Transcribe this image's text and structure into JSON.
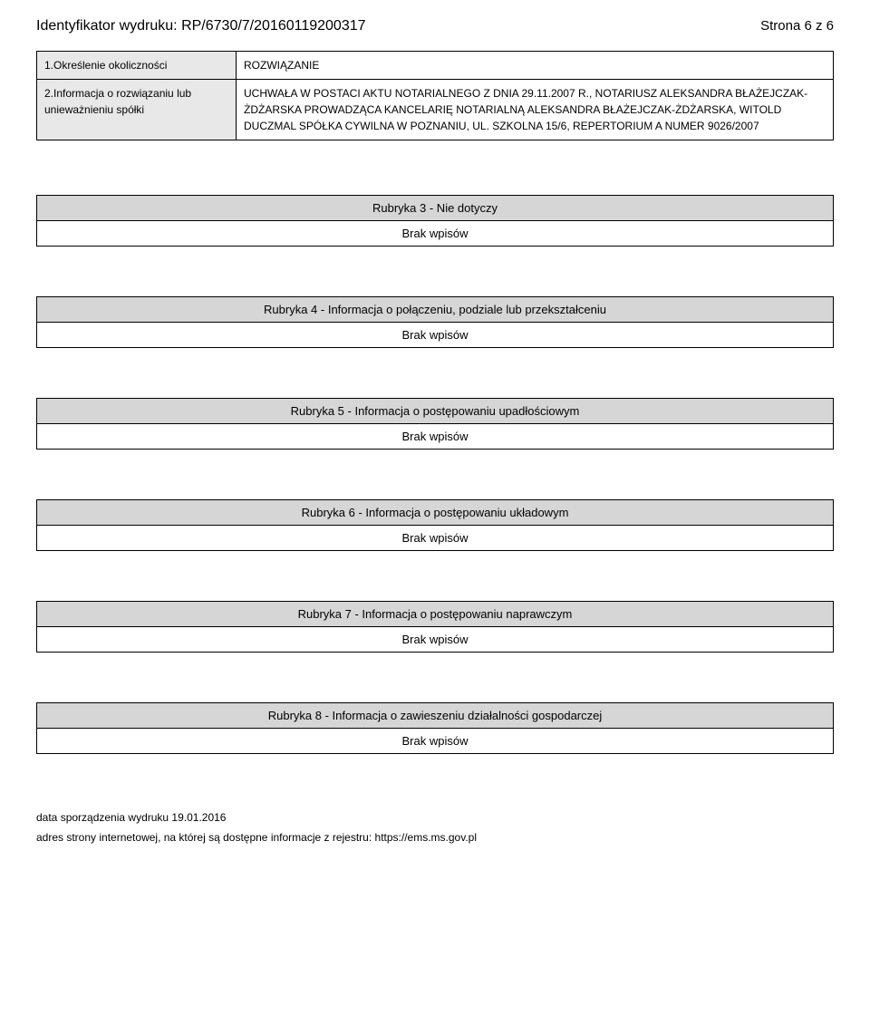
{
  "header": {
    "print_id": "Identyfikator wydruku: RP/6730/7/20160119200317",
    "page_number": "Strona 6 z 6"
  },
  "main_table": {
    "rows": [
      {
        "label": "1.Określenie okoliczności",
        "value": "ROZWIĄZANIE"
      },
      {
        "label": "2.Informacja o rozwiązaniu lub unieważnieniu spółki",
        "value": "UCHWAŁA W POSTACI AKTU NOTARIALNEGO Z DNIA 29.11.2007 R., NOTARIUSZ ALEKSANDRA BŁAŻEJCZAK-ŻDŻARSKA PROWADZĄCA KANCELARIĘ NOTARIALNĄ ALEKSANDRA BŁAŻEJCZAK-ŻDŻARSKA, WITOLD DUCZMAL SPÓŁKA CYWILNA W POZNANIU, UL. SZKOLNA 15/6, REPERTORIUM A NUMER 9026/2007"
      }
    ]
  },
  "sections": [
    {
      "title": "Rubryka 3 - Nie dotyczy",
      "body": "Brak wpisów"
    },
    {
      "title": "Rubryka 4 - Informacja o połączeniu, podziale lub przekształceniu",
      "body": "Brak wpisów"
    },
    {
      "title": "Rubryka 5 - Informacja o postępowaniu upadłościowym",
      "body": "Brak wpisów"
    },
    {
      "title": "Rubryka 6 - Informacja o postępowaniu układowym",
      "body": "Brak wpisów"
    },
    {
      "title": "Rubryka 7 - Informacja o postępowaniu naprawczym",
      "body": "Brak wpisów"
    },
    {
      "title": "Rubryka 8 - Informacja o zawieszeniu działalności gospodarczej",
      "body": "Brak wpisów"
    }
  ],
  "footer": {
    "date_line": "data sporządzenia wydruku 19.01.2016",
    "url_line": "adres strony internetowej, na której są dostępne informacje z rejestru: https://ems.ms.gov.pl"
  }
}
